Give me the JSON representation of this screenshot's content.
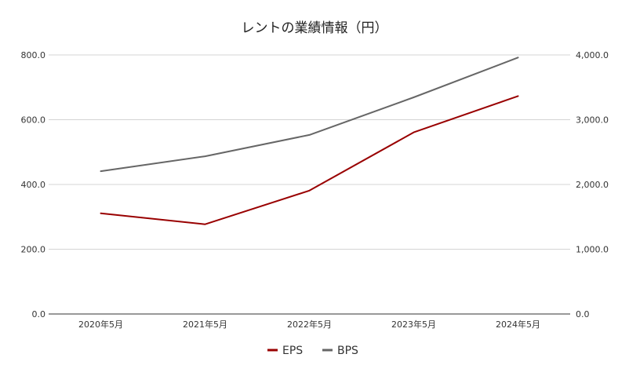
{
  "chart_data": {
    "type": "line",
    "title": "レントの業績情報（円）",
    "categories": [
      "2020年5月",
      "2021年5月",
      "2022年5月",
      "2023年5月",
      "2024年5月"
    ],
    "left_axis": {
      "ticks": [
        "0.0",
        "200.0",
        "400.0",
        "600.0",
        "800.0"
      ],
      "ylim": [
        0,
        800
      ]
    },
    "right_axis": {
      "ticks": [
        "0.0",
        "1,000.0",
        "2,000.0",
        "3,000.0",
        "4,000.0"
      ],
      "ylim": [
        0,
        4000
      ]
    },
    "series": [
      {
        "name": "EPS",
        "axis": "left",
        "color": "#990000",
        "values": [
          311,
          277,
          381,
          561,
          673
        ]
      },
      {
        "name": "BPS",
        "axis": "right",
        "color": "#666666",
        "values": [
          2205,
          2435,
          2765,
          3345,
          3960
        ]
      }
    ],
    "grid": true,
    "legend_position": "bottom"
  }
}
